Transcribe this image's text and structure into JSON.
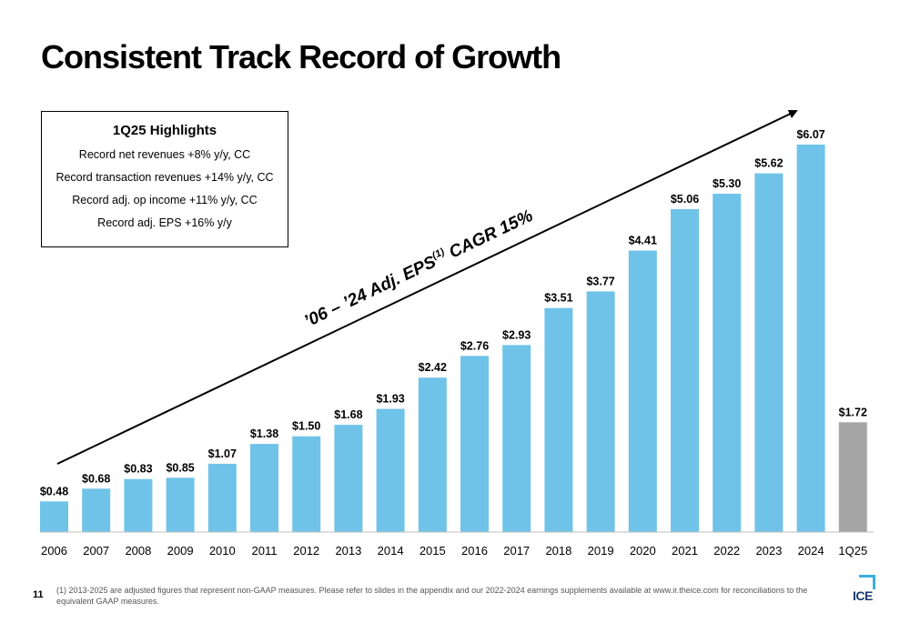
{
  "slide": {
    "title": "Consistent Track Record of Growth",
    "page_number": "11",
    "footnote": "(1) 2013-2025 are adjusted figures that represent non-GAAP measures. Please refer to slides in the appendix and our 2022-2024 earnings supplements available at www.ir.theice.com for reconciliations to the equivalent GAAP measures.",
    "logo_text": "ICE"
  },
  "highlights": {
    "title": "1Q25 Highlights",
    "items": [
      "Record net revenues +8% y/y, CC",
      "Record transaction revenues +14% y/y, CC",
      "Record adj. op income +11% y/y, CC",
      "Record adj. EPS +16% y/y"
    ]
  },
  "colors": {
    "annual_bar": "#70c3e8",
    "quarter_bar": "#a6a6a6",
    "text": "#000000",
    "axis": "#bfbfbf",
    "accent": "#3aaee0"
  },
  "chart_data": {
    "type": "bar",
    "categories": [
      "2006",
      "2007",
      "2008",
      "2009",
      "2010",
      "2011",
      "2012",
      "2013",
      "2014",
      "2015",
      "2016",
      "2017",
      "2018",
      "2019",
      "2020",
      "2021",
      "2022",
      "2023",
      "2024",
      "1Q25"
    ],
    "values": [
      0.48,
      0.68,
      0.83,
      0.85,
      1.07,
      1.38,
      1.5,
      1.68,
      1.93,
      2.42,
      2.76,
      2.93,
      3.51,
      3.77,
      4.41,
      5.06,
      5.3,
      5.62,
      6.07,
      1.72
    ],
    "data_labels": [
      "$0.48",
      "$0.68",
      "$0.83",
      "$0.85",
      "$1.07",
      "$1.38",
      "$1.50",
      "$1.68",
      "$1.93",
      "$2.42",
      "$2.76",
      "$2.93",
      "$3.51",
      "$3.77",
      "$4.41",
      "$5.06",
      "$5.30",
      "$5.62",
      "$6.07",
      "$1.72"
    ],
    "ylim": [
      0,
      6.07
    ],
    "grid": false,
    "annotation": {
      "text_prefix": "’06 – ’24 Adj. EPS",
      "superscript": "(1)",
      "text_suffix": " CAGR 15%"
    }
  }
}
